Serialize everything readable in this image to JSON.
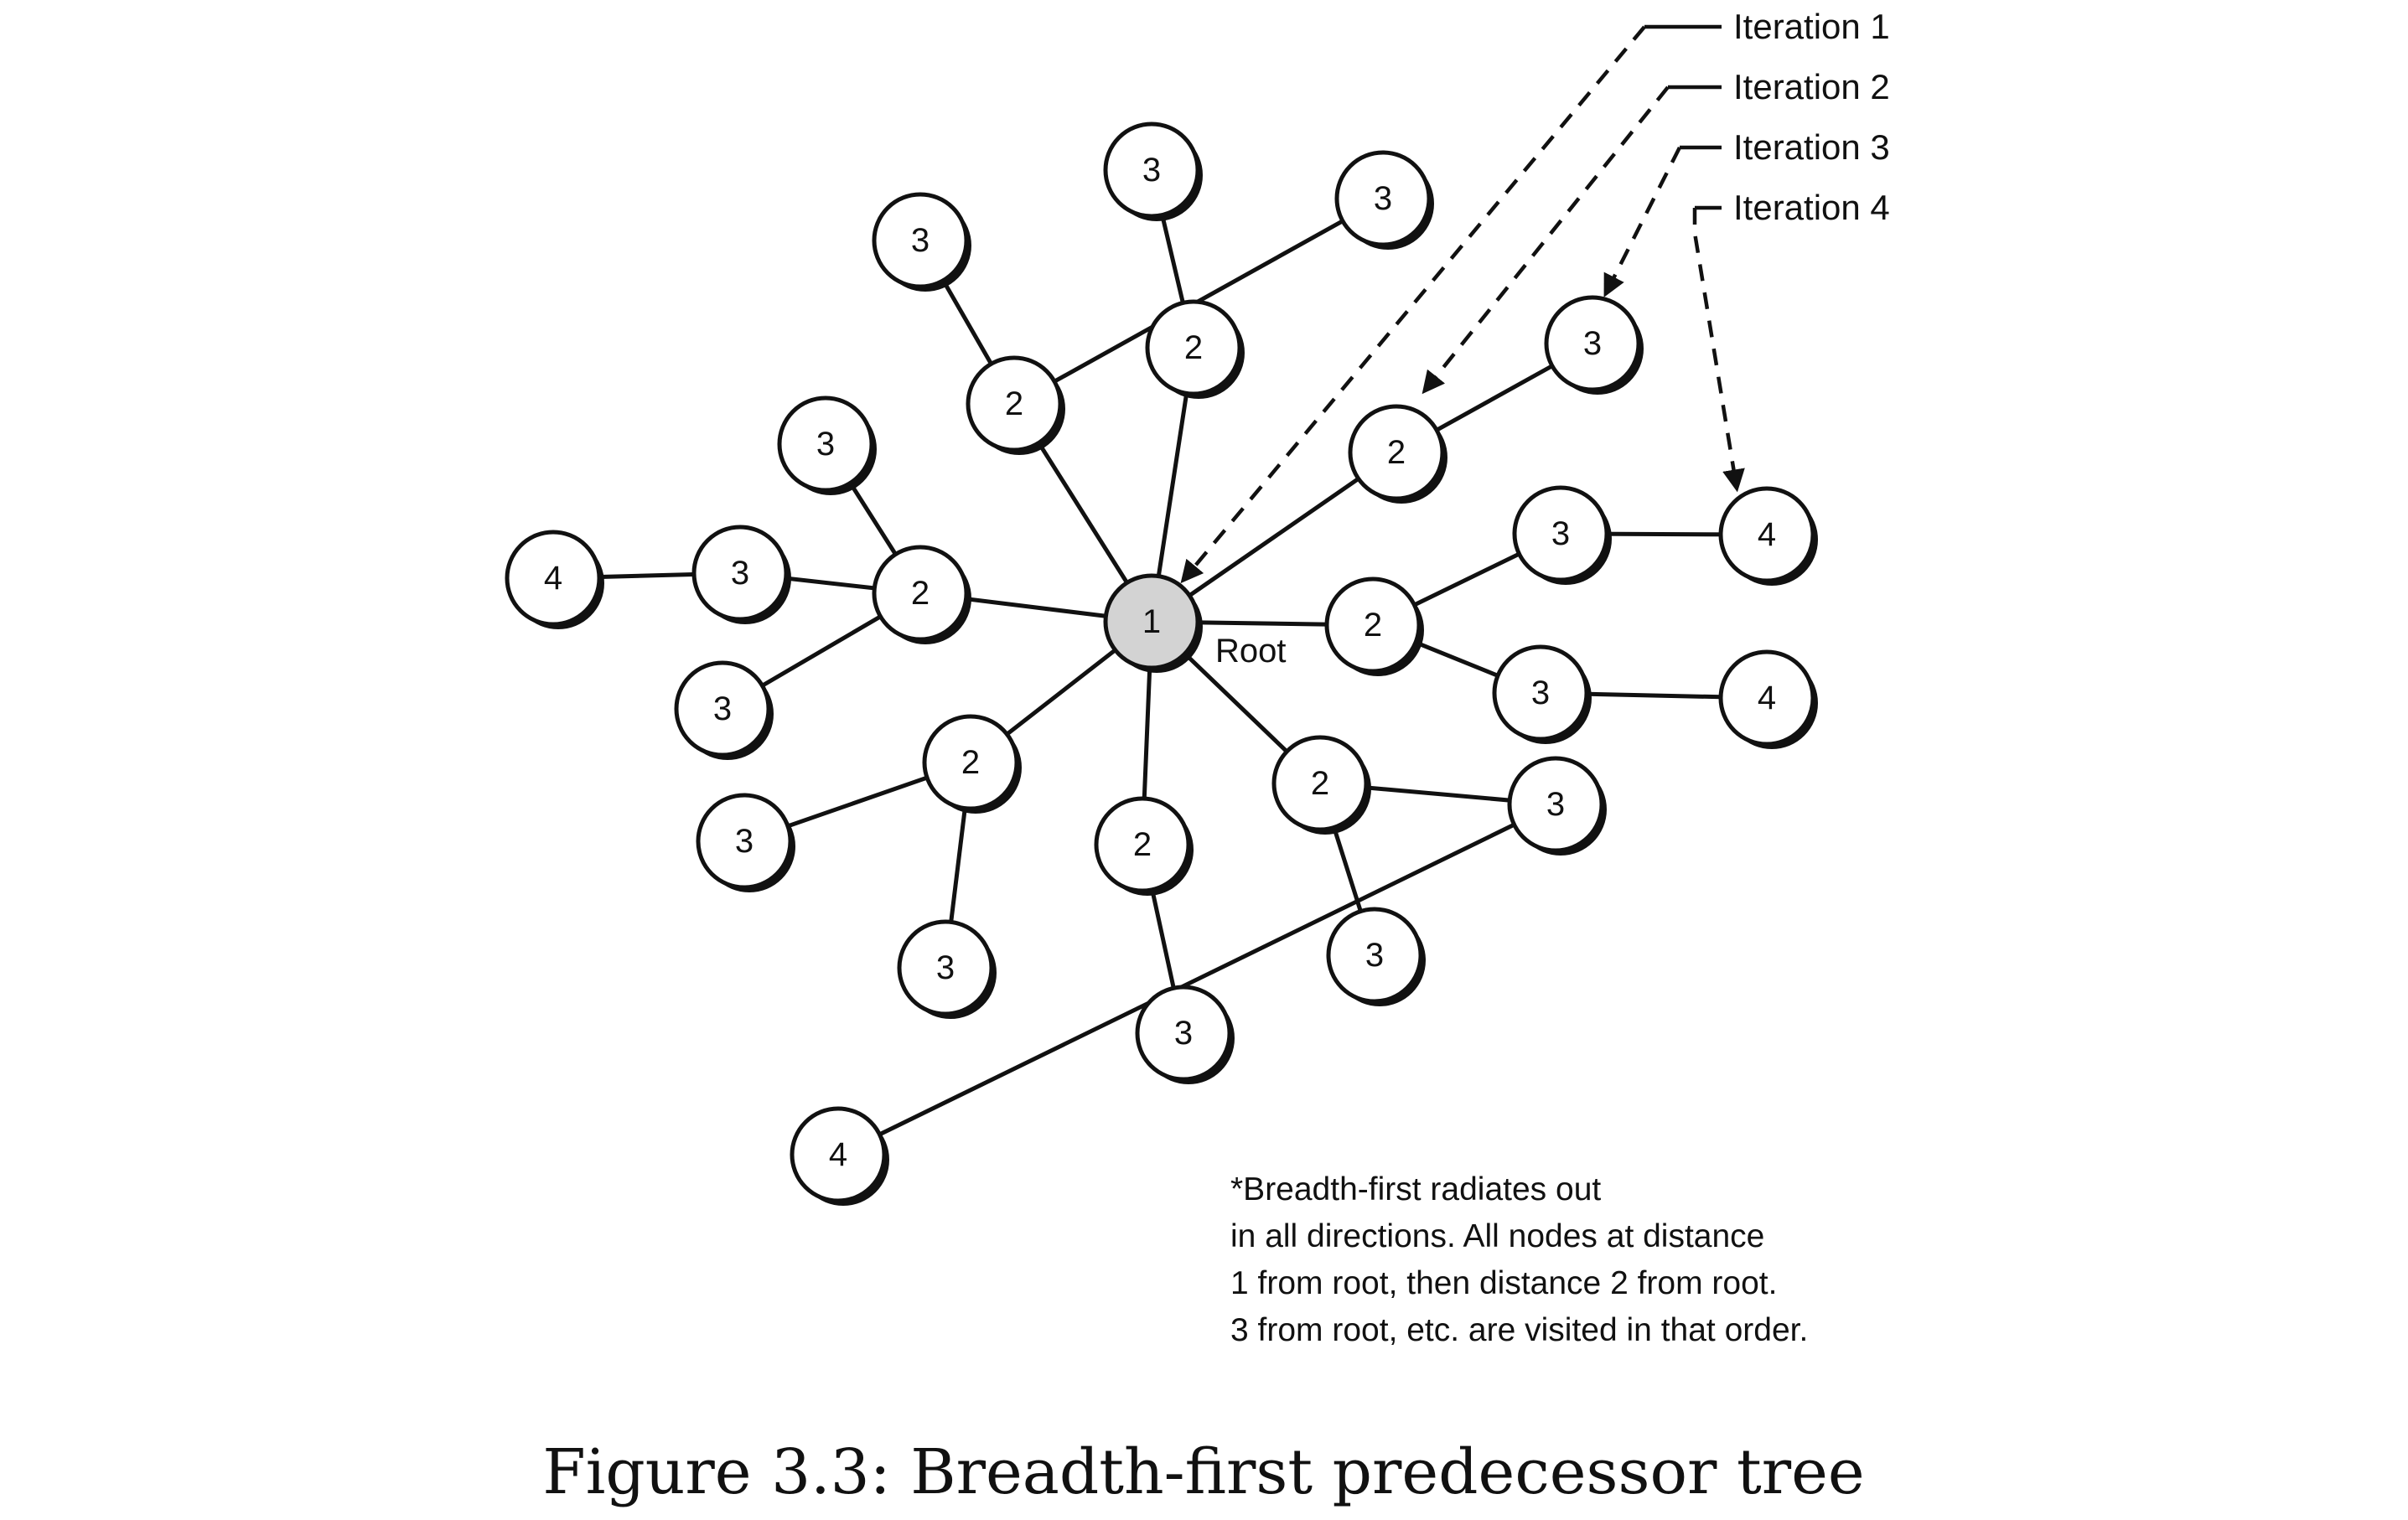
{
  "diagram": {
    "root_label": "Root",
    "nodes": [
      {
        "id": "root",
        "label": "1",
        "root": true
      },
      {
        "id": "a",
        "label": "2"
      },
      {
        "id": "b",
        "label": "2"
      },
      {
        "id": "c",
        "label": "2"
      },
      {
        "id": "d",
        "label": "2"
      },
      {
        "id": "e",
        "label": "2"
      },
      {
        "id": "f",
        "label": "2"
      },
      {
        "id": "g",
        "label": "2"
      },
      {
        "id": "h",
        "label": "2"
      },
      {
        "id": "a1",
        "label": "3"
      },
      {
        "id": "b1",
        "label": "3"
      },
      {
        "id": "b2",
        "label": "3"
      },
      {
        "id": "c1",
        "label": "3"
      },
      {
        "id": "d1",
        "label": "3"
      },
      {
        "id": "d2",
        "label": "3"
      },
      {
        "id": "d3",
        "label": "3"
      },
      {
        "id": "e1",
        "label": "3"
      },
      {
        "id": "e2",
        "label": "3"
      },
      {
        "id": "f1",
        "label": "3"
      },
      {
        "id": "f2",
        "label": "3"
      },
      {
        "id": "g1",
        "label": "3"
      },
      {
        "id": "h1",
        "label": "3"
      },
      {
        "id": "h2",
        "label": "3"
      },
      {
        "id": "d2x",
        "label": "4"
      },
      {
        "id": "e1x",
        "label": "4"
      },
      {
        "id": "e2x",
        "label": "4"
      },
      {
        "id": "h1x",
        "label": "4"
      }
    ],
    "edges": [
      [
        "root",
        "a"
      ],
      [
        "root",
        "b"
      ],
      [
        "root",
        "c"
      ],
      [
        "root",
        "d"
      ],
      [
        "root",
        "e"
      ],
      [
        "root",
        "f"
      ],
      [
        "root",
        "g"
      ],
      [
        "root",
        "h"
      ],
      [
        "a",
        "a1"
      ],
      [
        "b",
        "b1"
      ],
      [
        "b",
        "b2"
      ],
      [
        "c",
        "c1"
      ],
      [
        "d",
        "d1"
      ],
      [
        "d",
        "d2"
      ],
      [
        "d",
        "d3"
      ],
      [
        "e",
        "e1"
      ],
      [
        "e",
        "e2"
      ],
      [
        "f",
        "f1"
      ],
      [
        "f",
        "f2"
      ],
      [
        "g",
        "g1"
      ],
      [
        "h",
        "h1"
      ],
      [
        "h",
        "h2"
      ],
      [
        "d2",
        "d2x"
      ],
      [
        "e1",
        "e1x"
      ],
      [
        "e2",
        "e2x"
      ],
      [
        "h1",
        "h1x"
      ]
    ],
    "iterations": [
      {
        "label": "Iteration 1",
        "target": "root"
      },
      {
        "label": "Iteration 2",
        "target": "c"
      },
      {
        "label": "Iteration 3",
        "target": "c1"
      },
      {
        "label": "Iteration 4",
        "target": "e1x"
      }
    ],
    "note_lines": [
      "*Breadth-first radiates out",
      "in all directions. All nodes at distance",
      "1 from root, then distance 2 from root.",
      "3 from root, etc. are visited in that order."
    ]
  },
  "caption": "Figure 3.3: Breadth-first predecessor tree"
}
